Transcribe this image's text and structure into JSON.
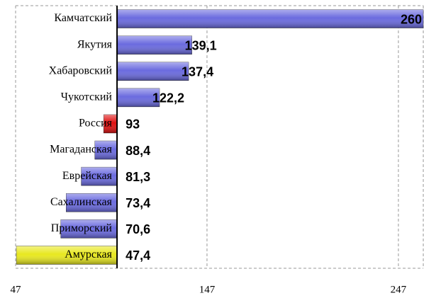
{
  "chart_data": {
    "type": "bar",
    "orientation": "horizontal",
    "categories": [
      "Камчатский",
      "Якутия",
      "Хабаровский",
      "Чукотский",
      "Россия",
      "Магаданская",
      "Еврейская",
      "Сахалинская",
      "Приморский",
      "Амурская"
    ],
    "values": [
      260,
      139.1,
      137.4,
      122.2,
      93,
      88.4,
      81.3,
      73.4,
      70.6,
      47.4
    ],
    "value_labels": [
      "260",
      "139,1",
      "137,4",
      "122,2",
      "93",
      "88,4",
      "81,3",
      "73,4",
      "70,6",
      "47,4"
    ],
    "colors": [
      "#6b6bdf",
      "#6b6bdf",
      "#6b6bdf",
      "#6b6bdf",
      "#e01010",
      "#6b6bdf",
      "#6b6bdf",
      "#6b6bdf",
      "#6b6bdf",
      "#e8e820"
    ],
    "xlim": [
      47,
      260
    ],
    "xticks": [
      47,
      147,
      247
    ],
    "x_origin": 100,
    "grid": true
  }
}
